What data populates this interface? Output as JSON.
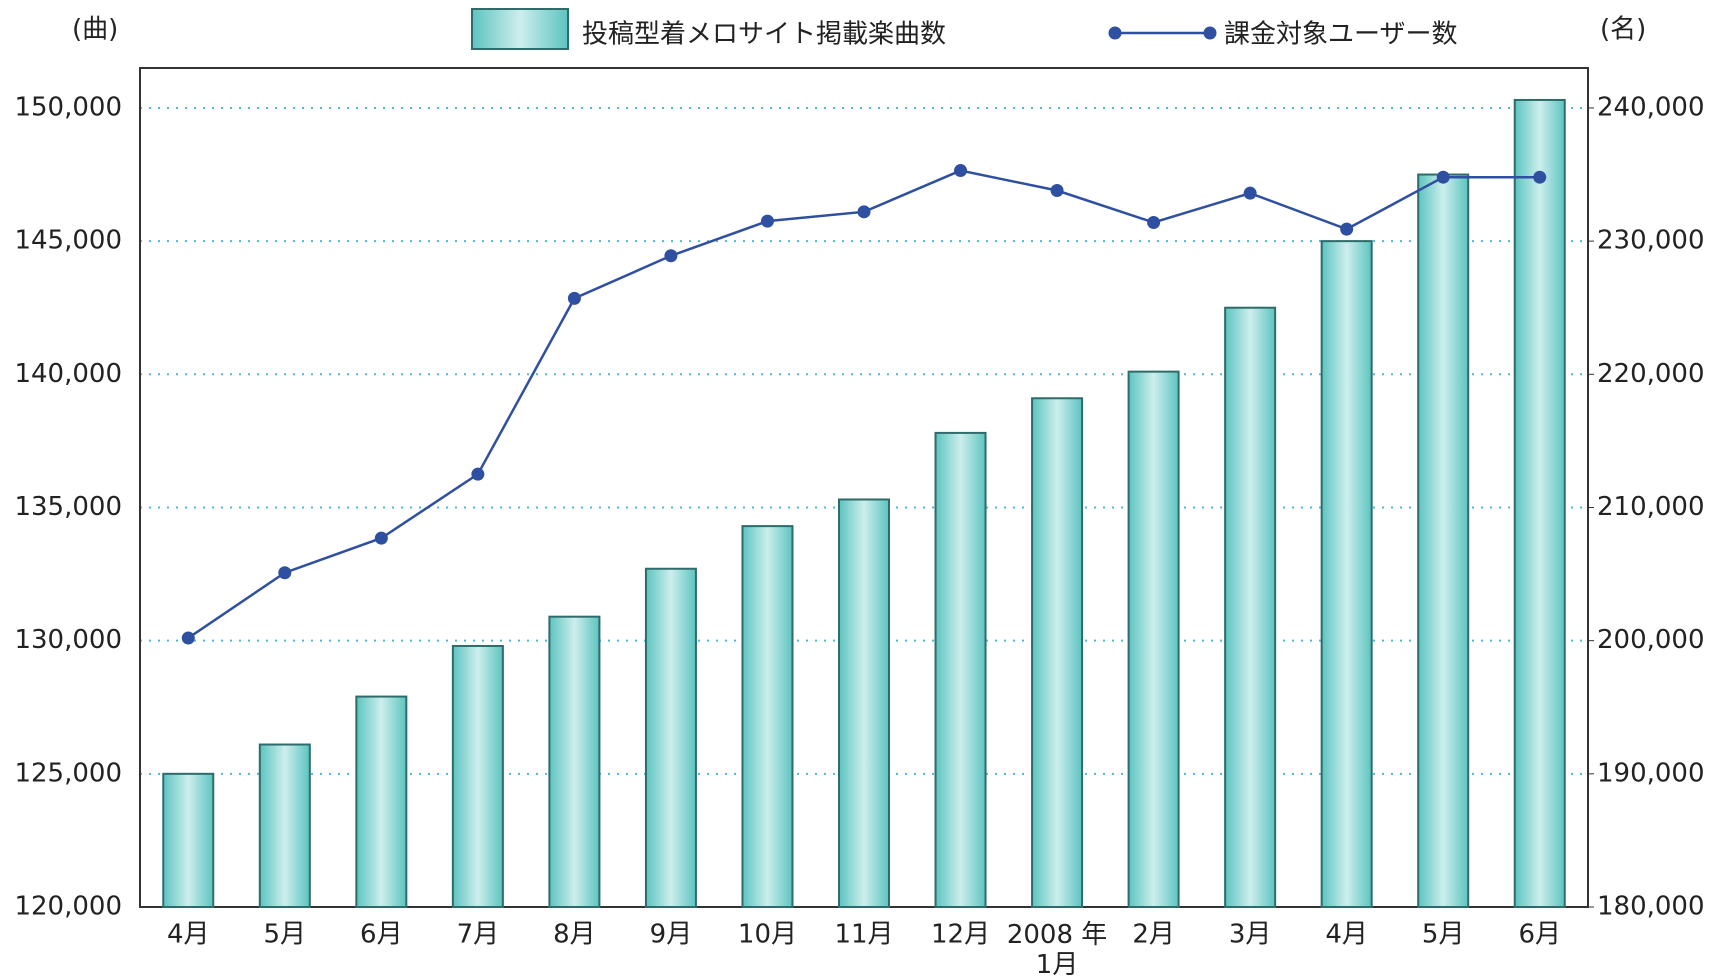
{
  "chart_data": {
    "type": "bar_line",
    "y_unit": "(曲)",
    "y2_unit": "(名)",
    "categories": [
      "4月",
      "5月",
      "6月",
      "7月",
      "8月",
      "9月",
      "10月",
      "11月",
      "12月",
      "2008 年\n1月",
      "2月",
      "3月",
      "4月",
      "5月",
      "6月"
    ],
    "series": [
      {
        "name": "投稿型着メロサイト掲載楽曲数",
        "type": "bar",
        "color": "#5cc4c0",
        "values": [
          125000,
          126100,
          127900,
          129800,
          130900,
          132700,
          134300,
          135300,
          137800,
          139100,
          140100,
          142500,
          145000,
          147500,
          150300
        ]
      },
      {
        "name": "課金対象ユーザー数",
        "type": "line",
        "axis": "y2",
        "color": "#2f4fa0",
        "values": [
          200200,
          205100,
          207700,
          212500,
          225700,
          228900,
          231500,
          232200,
          235300,
          233800,
          231400,
          233600,
          230900,
          234800,
          234800
        ]
      }
    ],
    "ylim": [
      120000,
      151500
    ],
    "yticks": [
      {
        "value": 120000,
        "label": "120,000"
      },
      {
        "value": 125000,
        "label": "125,000"
      },
      {
        "value": 130000,
        "label": "130,000"
      },
      {
        "value": 135000,
        "label": "135,000"
      },
      {
        "value": 140000,
        "label": "140,000"
      },
      {
        "value": 145000,
        "label": "145,000"
      },
      {
        "value": 150000,
        "label": "150,000"
      }
    ],
    "y2lim": [
      180000,
      243000
    ],
    "y2ticks": [
      {
        "value": 180000,
        "label": "180,000"
      },
      {
        "value": 190000,
        "label": "190,000"
      },
      {
        "value": 200000,
        "label": "200,000"
      },
      {
        "value": 210000,
        "label": "210,000"
      },
      {
        "value": 220000,
        "label": "220,000"
      },
      {
        "value": 230000,
        "label": "230,000"
      },
      {
        "value": 240000,
        "label": "240,000"
      }
    ],
    "grid": true
  }
}
